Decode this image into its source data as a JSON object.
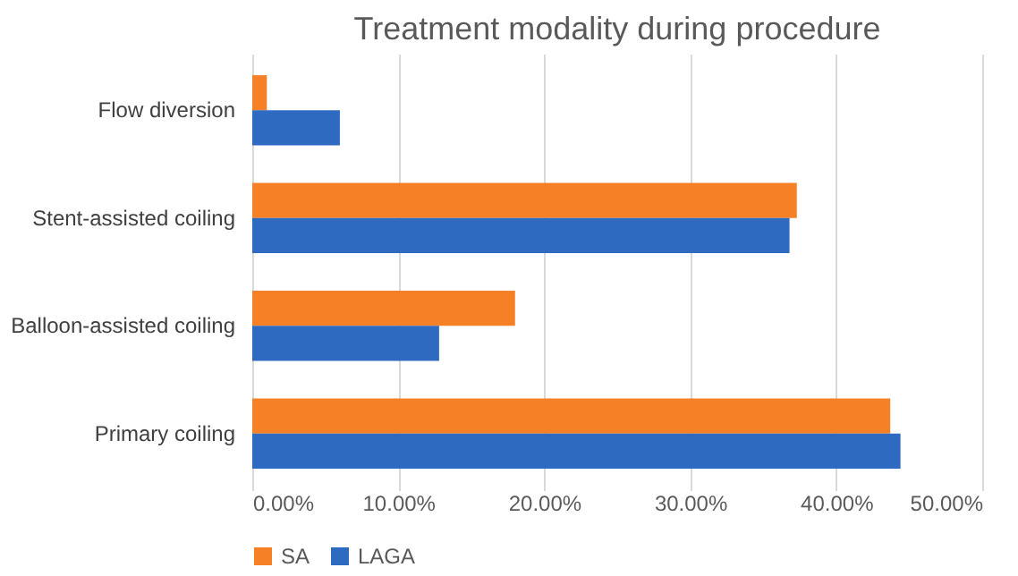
{
  "chart_data": {
    "type": "bar",
    "orientation": "horizontal",
    "title": "Treatment modality during procedure",
    "categories": [
      "Flow diversion",
      "Stent-assisted coiling",
      "Balloon-assisted coiling",
      "Primary coiling"
    ],
    "series": [
      {
        "name": "SA",
        "color": "#f58026",
        "values": [
          1.0,
          37.3,
          18.0,
          43.7
        ]
      },
      {
        "name": "LAGA",
        "color": "#2e6bc0",
        "values": [
          6.0,
          36.8,
          12.8,
          44.4
        ]
      }
    ],
    "xlim": [
      0,
      50
    ],
    "xticks": [
      {
        "value": 0,
        "label": "0.00%"
      },
      {
        "value": 10,
        "label": "10.00%"
      },
      {
        "value": 20,
        "label": "20.00%"
      },
      {
        "value": 30,
        "label": "30.00%"
      },
      {
        "value": 40,
        "label": "40.00%"
      },
      {
        "value": 50,
        "label": "50.00%"
      }
    ],
    "grid": "x",
    "legend": "bottom"
  }
}
